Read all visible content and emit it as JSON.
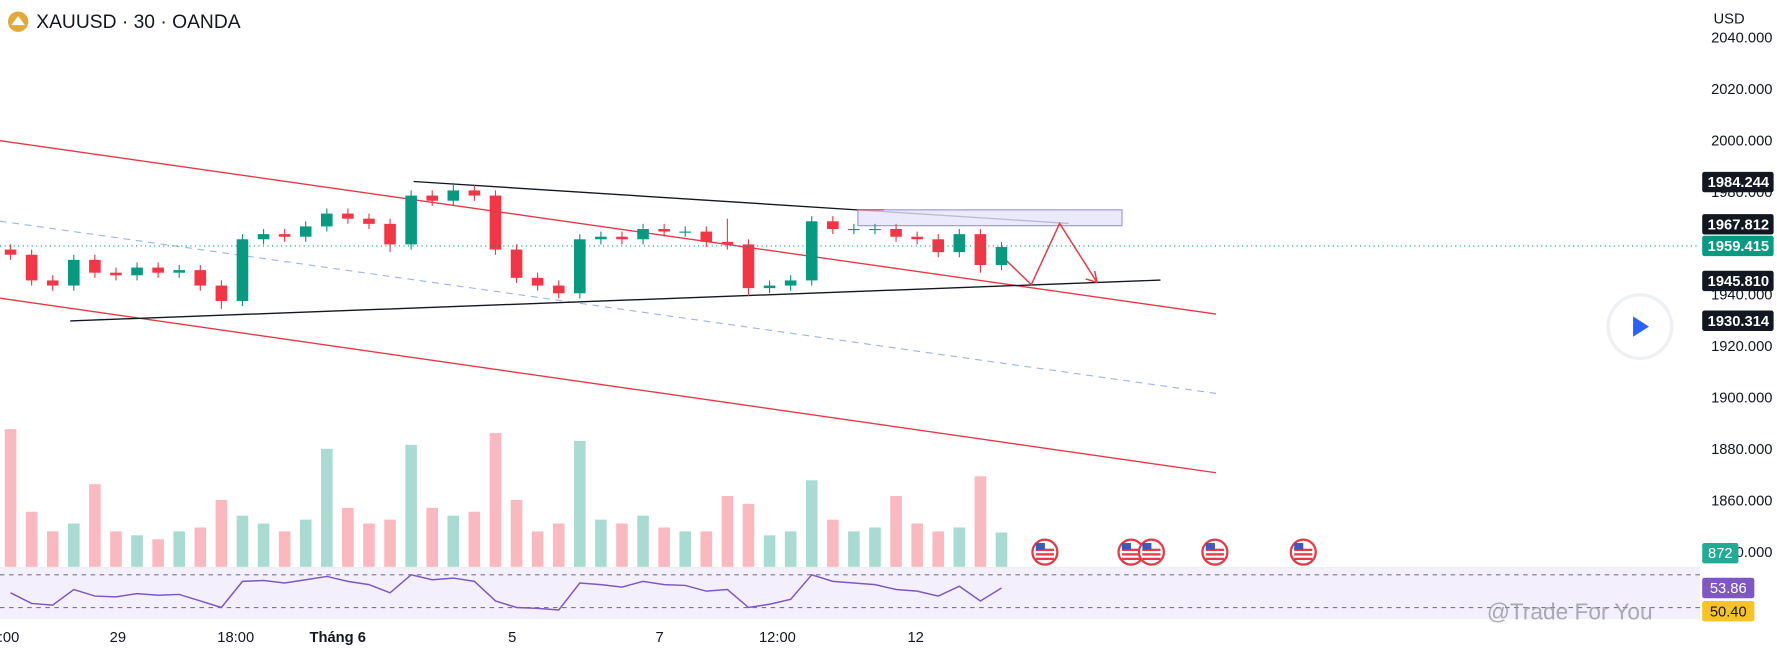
{
  "header": {
    "symbol_title": "XAUUSD · 30 · OANDA",
    "currency": "USD"
  },
  "chart_data": {
    "type": "candlestick",
    "ylim": [
      1834.6,
      2055
    ],
    "yticks": [
      {
        "value": 1840,
        "label": "1840.000"
      },
      {
        "value": 1860,
        "label": "1860.000"
      },
      {
        "value": 1880,
        "label": "1880.000"
      },
      {
        "value": 1900,
        "label": "1900.000"
      },
      {
        "value": 1920,
        "label": "1920.000"
      },
      {
        "value": 1940,
        "label": "1940.000"
      },
      {
        "value": 1960,
        "label": "1960.000"
      },
      {
        "value": 1980,
        "label": "1980.000"
      },
      {
        "value": 2000,
        "label": "2000.000"
      },
      {
        "value": 2020,
        "label": "2020.000"
      },
      {
        "value": 2040,
        "label": "2040.000"
      }
    ],
    "x_labels": [
      ":00",
      "29",
      "18:00",
      "Tháng 6",
      "5",
      "7",
      "12:00",
      "12"
    ],
    "open": [
      1958,
      1956,
      1946,
      1944,
      1954,
      1949,
      1948,
      1951,
      1949,
      1950,
      1944,
      1938,
      1962,
      1964,
      1963,
      1967,
      1972,
      1970,
      1968,
      1960,
      1979,
      1977,
      1981,
      1979,
      1958,
      1947,
      1944,
      1941,
      1962,
      1963,
      1962,
      1966,
      1965,
      1965,
      1961,
      1960,
      1943,
      1944,
      1946,
      1969,
      1966,
      1966,
      1966,
      1963,
      1962,
      1957,
      1964,
      1952
    ],
    "high": [
      1960,
      1958,
      1948,
      1956,
      1956,
      1951,
      1953,
      1953,
      1952,
      1952,
      1946,
      1964,
      1966,
      1966,
      1969,
      1974,
      1974,
      1972,
      1970,
      1981,
      1981,
      1984,
      1983,
      1981,
      1960,
      1949,
      1946,
      1964,
      1965,
      1965,
      1968,
      1968,
      1967,
      1967,
      1970,
      1962,
      1946,
      1948,
      1971,
      1971,
      1968,
      1968,
      1968,
      1965,
      1964,
      1966,
      1966,
      1961
    ],
    "low": [
      1954,
      1944,
      1942,
      1942,
      1947,
      1946,
      1946,
      1947,
      1947,
      1942,
      1935,
      1936,
      1960,
      1961,
      1961,
      1965,
      1968,
      1966,
      1957,
      1958,
      1975,
      1975,
      1977,
      1956,
      1945,
      1942,
      1939,
      1939,
      1960,
      1960,
      1960,
      1963,
      1963,
      1959,
      1958,
      1940,
      1941,
      1942,
      1944,
      1964,
      1964,
      1964,
      1961,
      1960,
      1955,
      1955,
      1949,
      1950
    ],
    "close": [
      1956,
      1946,
      1944,
      1954,
      1949,
      1948,
      1951,
      1949,
      1950,
      1944,
      1938,
      1962,
      1964,
      1963,
      1967,
      1972,
      1970,
      1968,
      1960,
      1979,
      1977,
      1981,
      1979,
      1958,
      1947,
      1944,
      1941,
      1962,
      1963,
      1962,
      1966,
      1965,
      1965,
      1961,
      1960,
      1943,
      1944,
      1946,
      1969,
      1966,
      1966,
      1966,
      1963,
      1962,
      1957,
      1964,
      1952,
      1959
    ],
    "up_color": "#089981",
    "down_color": "#f23645",
    "volume": {
      "ylim": [
        0,
        3600
      ],
      "values": [
        3500,
        1400,
        900,
        1100,
        2100,
        900,
        800,
        700,
        900,
        1000,
        1700,
        1300,
        1100,
        900,
        1200,
        3000,
        1500,
        1100,
        1200,
        3100,
        1500,
        1300,
        1400,
        3400,
        1700,
        900,
        1100,
        3200,
        1200,
        1100,
        1300,
        1000,
        900,
        900,
        1800,
        1600,
        800,
        900,
        2200,
        1200,
        900,
        1000,
        1800,
        1100,
        900,
        1000,
        2300,
        872
      ],
      "label_color": "#22ab94"
    },
    "price_labels": [
      {
        "value": 1984.244,
        "label": "1984.244",
        "color": "#131722"
      },
      {
        "value": 1967.812,
        "label": "1967.812",
        "color": "#131722"
      },
      {
        "value": 1945.81,
        "label": "1945.810",
        "color": "#131722"
      },
      {
        "value": 1930.314,
        "label": "1930.314",
        "color": "#131722"
      }
    ],
    "current_price": {
      "value": 1959.415,
      "label": "1959.415",
      "color": "#089981"
    },
    "rsi": {
      "ylim": [
        16,
        77
      ],
      "bands": [
        30,
        70
      ],
      "color": "#7e57c2",
      "values": [
        48,
        35,
        33,
        52,
        44,
        43,
        47,
        45,
        46,
        38,
        30,
        62,
        63,
        60,
        64,
        68,
        62,
        58,
        48,
        70,
        64,
        66,
        62,
        38,
        30,
        29,
        27,
        60,
        58,
        55,
        62,
        58,
        57,
        50,
        52,
        30,
        34,
        40,
        70,
        62,
        60,
        58,
        52,
        50,
        44,
        56,
        38,
        53.86
      ],
      "ma": {
        "value": 50.4,
        "label": "50.40",
        "color": "#f7c325"
      }
    },
    "watermark": "@Trade For You"
  }
}
